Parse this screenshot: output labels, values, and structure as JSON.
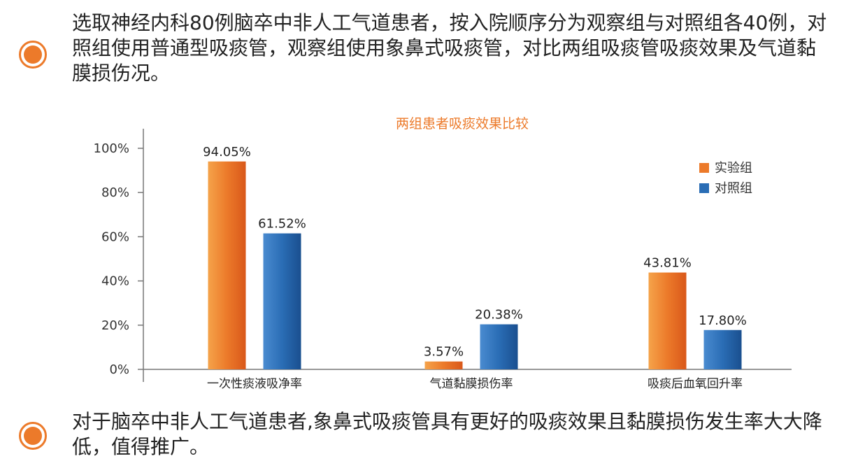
{
  "top_text": "选取神经内科80例脑卒中非人工气道患者，按入院顺序分为观察组与对照组各40例，对照组使用普通型吸痰管，观察组使用象鼻式吸痰管，对比两组吸痰管吸痰效果及气道黏膜损伤况。",
  "bottom_text": "对于脑卒中非人工气道患者,象鼻式吸痰管具有更好的吸痰效果且黏膜损伤发生率大大降低，值得推广。",
  "colors": {
    "accent": "#ec7a2a",
    "orange_series": "#ec7a2a",
    "blue_series": "#2a6db5"
  },
  "chart_data": {
    "type": "bar",
    "title": "两组患者吸痰效果比较",
    "categories": [
      "一次性痰液吸净率",
      "气道黏膜损伤率",
      "吸痰后血氧回升率"
    ],
    "series": [
      {
        "name": "实验组",
        "values": [
          94.05,
          3.57,
          43.81
        ],
        "labels": [
          "94.05%",
          "3.57%",
          "43.81%"
        ]
      },
      {
        "name": "对照组",
        "values": [
          61.52,
          20.38,
          17.8
        ],
        "labels": [
          "61.52%",
          "20.38%",
          "17.80%"
        ]
      }
    ],
    "yticks": [
      "0%",
      "20%",
      "40%",
      "60%",
      "80%",
      "100%"
    ],
    "ylim": [
      0,
      100
    ],
    "legend": "top-right",
    "grid": false
  }
}
